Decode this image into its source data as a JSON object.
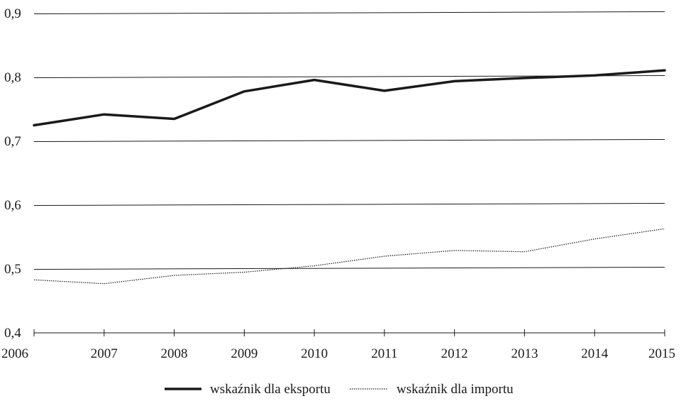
{
  "chart_data": {
    "type": "line",
    "categories": [
      "2006",
      "2007",
      "2008",
      "2009",
      "2010",
      "2011",
      "2012",
      "2013",
      "2014",
      "2015"
    ],
    "series": [
      {
        "name": "wskaźnik dla eksportu",
        "values": [
          0.725,
          0.742,
          0.735,
          0.778,
          0.796,
          0.779,
          0.794,
          0.799,
          0.803,
          0.811
        ],
        "style": "solid-thick",
        "color": "#1a1a1a"
      },
      {
        "name": "wskaźnik dla importu",
        "values": [
          0.483,
          0.477,
          0.49,
          0.495,
          0.505,
          0.52,
          0.529,
          0.527,
          0.547,
          0.563
        ],
        "style": "dotted-thin",
        "color": "#1a1a1a"
      }
    ],
    "y_ticks": [
      "0,4",
      "0,5",
      "0,6",
      "0,7",
      "0,8",
      "0,9"
    ],
    "ylim": [
      0.4,
      0.9
    ],
    "grid": true,
    "legend_position": "bottom-center",
    "title": "",
    "xlabel": "",
    "ylabel": ""
  }
}
